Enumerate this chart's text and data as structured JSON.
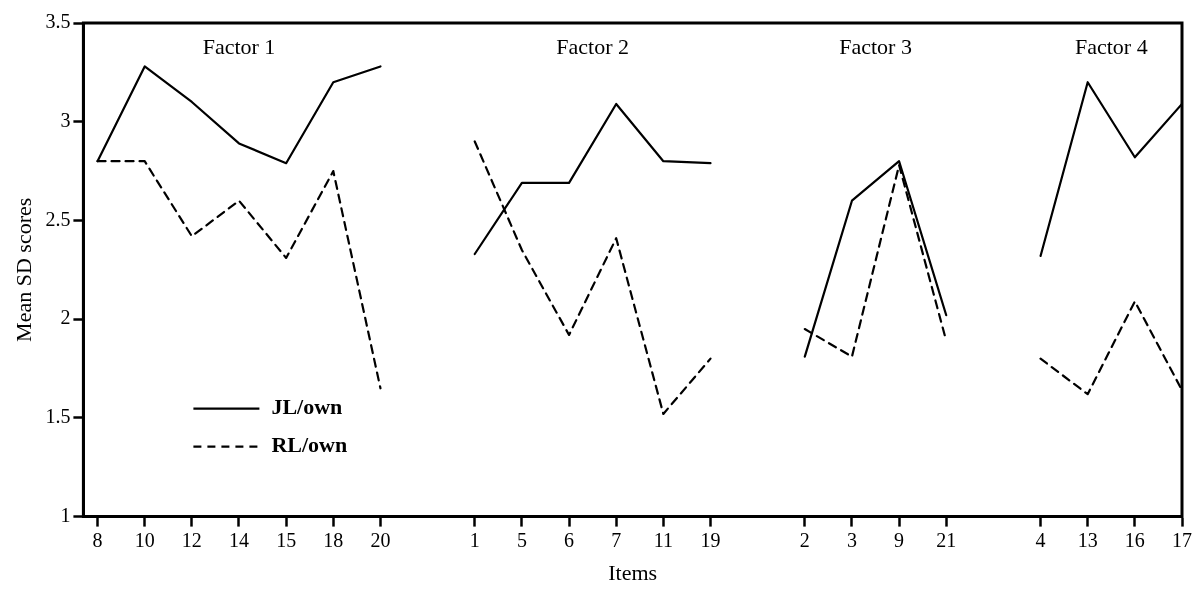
{
  "chart_data": {
    "type": "line",
    "xlabel": "Items",
    "ylabel": "Mean SD scores",
    "categories": [
      "8",
      "10",
      "12",
      "14",
      "15",
      "18",
      "20",
      null,
      "1",
      "5",
      "6",
      "7",
      "11",
      "19",
      null,
      "2",
      "3",
      "9",
      "21",
      null,
      "4",
      "13",
      "16",
      "17"
    ],
    "series": [
      {
        "name": "JL/own",
        "color": "#000000",
        "line_style": "solid",
        "values": [
          2.8,
          3.28,
          3.1,
          2.89,
          2.79,
          3.2,
          3.28,
          null,
          2.33,
          2.69,
          2.69,
          3.09,
          2.8,
          2.79,
          null,
          1.81,
          2.6,
          2.8,
          2.02,
          null,
          2.32,
          3.2,
          2.82,
          3.09
        ]
      },
      {
        "name": "RL/own",
        "color": "#000000",
        "line_style": "dashed",
        "values": [
          2.8,
          2.8,
          2.42,
          2.6,
          2.31,
          2.75,
          1.65,
          null,
          2.9,
          2.35,
          1.92,
          2.41,
          1.52,
          1.8,
          null,
          1.95,
          1.81,
          2.78,
          1.89,
          null,
          1.8,
          1.62,
          2.09,
          1.64
        ]
      }
    ],
    "annotations": [
      "Factor 1",
      "Factor 2",
      "Factor 3",
      "Factor 4"
    ],
    "ylim": [
      1,
      3.5
    ],
    "yticks": [
      1,
      1.5,
      2,
      2.5,
      3,
      3.5
    ],
    "grid": false,
    "legend": "bottom left",
    "marker": "none"
  }
}
